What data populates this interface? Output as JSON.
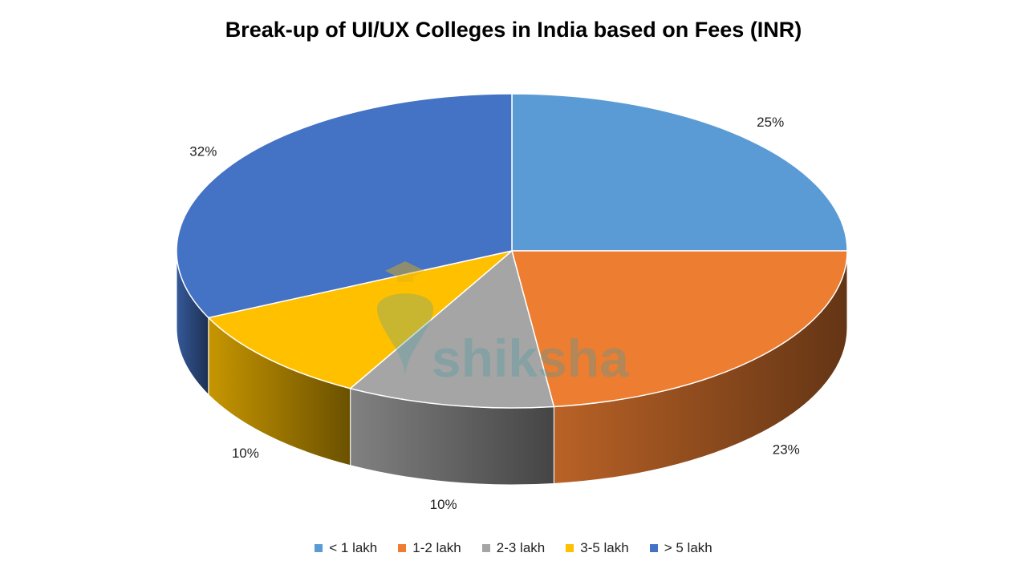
{
  "chart_data": {
    "type": "pie",
    "title": "Break-up of UI/UX Colleges in India based on Fees (INR)",
    "categories": [
      "< 1 lakh",
      "1-2 lakh",
      "2-3 lakh",
      "3-5 lakh",
      "> 5 lakh"
    ],
    "values": [
      25,
      23,
      10,
      10,
      32
    ],
    "value_labels": [
      "25%",
      "23%",
      "10%",
      "10%",
      "32%"
    ],
    "colors": [
      "#5b9bd5",
      "#ed7d31",
      "#a5a5a5",
      "#ffc000",
      "#4472c4"
    ],
    "legend_position": "bottom",
    "style": "3d"
  },
  "watermark": {
    "text": "shiksha",
    "icon": "graduation-cap-icon"
  }
}
